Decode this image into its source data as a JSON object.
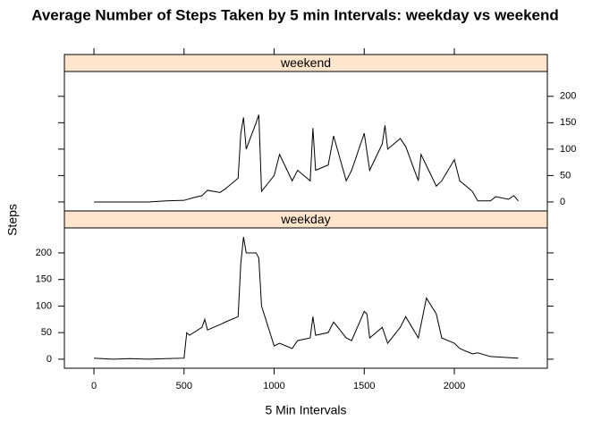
{
  "chart_data": {
    "type": "line",
    "title": "Average Number of Steps Taken by 5 min Intervals: weekday vs weekend",
    "xlabel": "5 Min Intervals",
    "ylabel": "Steps",
    "xlim": [
      -164,
      2516
    ],
    "xticks": [
      0,
      500,
      1000,
      1500,
      2000
    ],
    "ylim": [
      -17,
      247
    ],
    "yticks": [
      0,
      50,
      100,
      150,
      200
    ],
    "strip_color": "#ffe5cc",
    "series": [
      {
        "name": "weekend",
        "color": "#000000",
        "x": [
          0,
          100,
          200,
          300,
          400,
          500,
          550,
          600,
          630,
          700,
          730,
          800,
          815,
          830,
          845,
          900,
          915,
          930,
          1000,
          1030,
          1100,
          1130,
          1200,
          1215,
          1230,
          1300,
          1330,
          1400,
          1415,
          1430,
          1500,
          1530,
          1600,
          1615,
          1630,
          1700,
          1730,
          1800,
          1815,
          1900,
          1930,
          2000,
          2030,
          2100,
          2130,
          2200,
          2230,
          2300,
          2330,
          2355
        ],
        "values": [
          0,
          0,
          0,
          0,
          2,
          3,
          8,
          12,
          22,
          18,
          25,
          45,
          130,
          160,
          100,
          150,
          165,
          20,
          50,
          90,
          40,
          60,
          40,
          140,
          60,
          70,
          125,
          40,
          50,
          60,
          130,
          60,
          110,
          145,
          100,
          120,
          105,
          40,
          90,
          30,
          40,
          80,
          40,
          20,
          2,
          2,
          10,
          5,
          12,
          2
        ]
      },
      {
        "name": "weekday",
        "color": "#000000",
        "x": [
          0,
          100,
          200,
          300,
          400,
          500,
          515,
          530,
          600,
          615,
          630,
          700,
          730,
          800,
          815,
          830,
          845,
          900,
          915,
          930,
          1000,
          1030,
          1100,
          1130,
          1200,
          1215,
          1230,
          1300,
          1330,
          1400,
          1430,
          1500,
          1515,
          1530,
          1600,
          1630,
          1700,
          1730,
          1800,
          1830,
          1845,
          1900,
          1930,
          2000,
          2030,
          2100,
          2130,
          2200,
          2300,
          2355
        ],
        "values": [
          2,
          0,
          1,
          0,
          1,
          2,
          50,
          45,
          60,
          75,
          55,
          65,
          70,
          80,
          180,
          230,
          200,
          200,
          190,
          100,
          25,
          30,
          20,
          35,
          40,
          80,
          45,
          50,
          70,
          40,
          35,
          90,
          85,
          40,
          60,
          30,
          60,
          80,
          40,
          90,
          115,
          85,
          40,
          30,
          20,
          10,
          12,
          5,
          3,
          2
        ]
      }
    ]
  }
}
